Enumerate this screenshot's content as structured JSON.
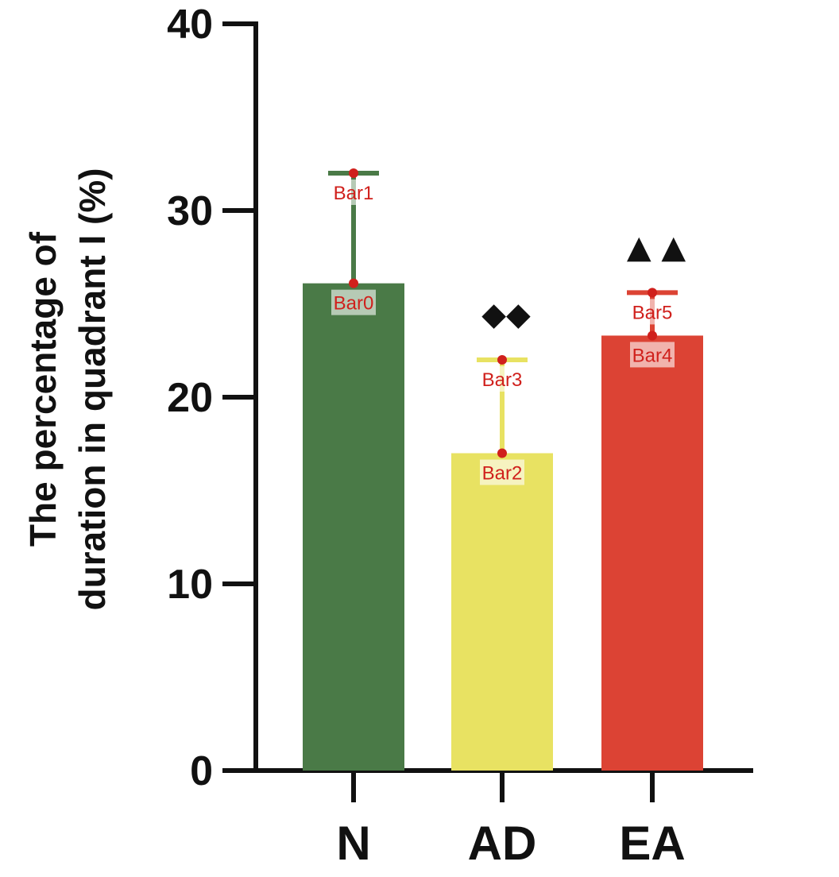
{
  "chart_data": {
    "type": "bar",
    "categories": [
      "N",
      "AD",
      "EA"
    ],
    "values": [
      26.1,
      17.0,
      23.3
    ],
    "error_upper": [
      32.0,
      22.0,
      25.6
    ],
    "colors": [
      "#4a7a47",
      "#e8e262",
      "#dc4334"
    ],
    "significance": [
      "",
      "◆◆",
      "▲ ▲"
    ],
    "ylabel_lines": [
      "The percentage of",
      "duration in quadrant  I (%)"
    ],
    "yticks": [
      "0",
      "10",
      "20",
      "30",
      "40"
    ],
    "ylim": [
      0,
      40
    ],
    "annotations": [
      {
        "label": "Bar0",
        "bar": 0,
        "y": 26.1
      },
      {
        "label": "Bar1",
        "bar": 0,
        "y": 32.0
      },
      {
        "label": "Bar2",
        "bar": 1,
        "y": 17.0
      },
      {
        "label": "Bar3",
        "bar": 1,
        "y": 22.0
      },
      {
        "label": "Bar4",
        "bar": 2,
        "y": 23.3
      },
      {
        "label": "Bar5",
        "bar": 2,
        "y": 25.6
      }
    ],
    "marker_color": "#d0201c"
  }
}
